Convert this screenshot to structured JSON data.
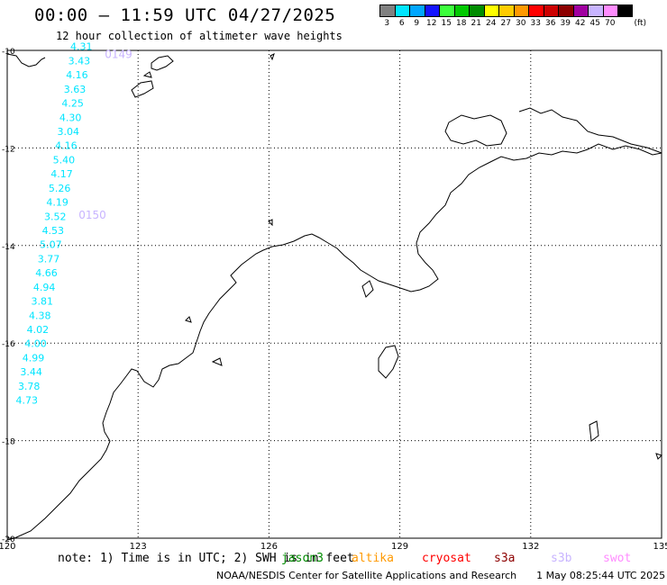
{
  "title": "00:00 — 11:59 UTC 04/27/2025",
  "subtitle": "12 hour collection of altimeter wave heights",
  "legend": {
    "unit": "(ft)",
    "bins": [
      {
        "label": "3",
        "color": "#808080"
      },
      {
        "label": "6",
        "color": "#00e5ff"
      },
      {
        "label": "9",
        "color": "#00a6ff"
      },
      {
        "label": "12",
        "color": "#1414ff"
      },
      {
        "label": "15",
        "color": "#3cff3c"
      },
      {
        "label": "18",
        "color": "#00c800"
      },
      {
        "label": "21",
        "color": "#008c00"
      },
      {
        "label": "24",
        "color": "#ffff00"
      },
      {
        "label": "27",
        "color": "#ffcc00"
      },
      {
        "label": "30",
        "color": "#ff9900"
      },
      {
        "label": "33",
        "color": "#ff0000"
      },
      {
        "label": "36",
        "color": "#cc0000"
      },
      {
        "label": "39",
        "color": "#8c0000"
      },
      {
        "label": "42",
        "color": "#a000a0"
      },
      {
        "label": "45",
        "color": "#c8b4ff"
      },
      {
        "label": "70",
        "color": "#ff8cff"
      },
      {
        "label": "",
        "color": "#000000"
      }
    ]
  },
  "map": {
    "lon_range": [
      120,
      135
    ],
    "lat_range": [
      -20,
      -10
    ],
    "lon_ticks": [
      "120",
      "123",
      "126",
      "129",
      "132",
      "135"
    ],
    "lat_ticks": [
      "-10",
      "-12",
      "-14",
      "-16",
      "-18",
      "-20"
    ],
    "grid": "dotted"
  },
  "track": {
    "color": "#00e5ff",
    "time_color": "#c8b4ff",
    "times": [
      {
        "label": "0149",
        "lat": -10.06
      },
      {
        "label": "0150",
        "lat": -13.36
      }
    ],
    "points": [
      {
        "lon": 121.7,
        "lat": -9.92,
        "swh": "4.31"
      },
      {
        "lon": 121.65,
        "lat": -10.21,
        "swh": "3.43"
      },
      {
        "lon": 121.6,
        "lat": -10.5,
        "swh": "4.16"
      },
      {
        "lon": 121.55,
        "lat": -10.79,
        "swh": "3.63"
      },
      {
        "lon": 121.5,
        "lat": -11.08,
        "swh": "4.25"
      },
      {
        "lon": 121.45,
        "lat": -11.37,
        "swh": "4.30"
      },
      {
        "lon": 121.4,
        "lat": -11.66,
        "swh": "3.04"
      },
      {
        "lon": 121.35,
        "lat": -11.95,
        "swh": "4.16"
      },
      {
        "lon": 121.3,
        "lat": -12.24,
        "swh": "5.40"
      },
      {
        "lon": 121.25,
        "lat": -12.53,
        "swh": "4.17"
      },
      {
        "lon": 121.2,
        "lat": -12.82,
        "swh": "5.26"
      },
      {
        "lon": 121.15,
        "lat": -13.11,
        "swh": "4.19"
      },
      {
        "lon": 121.1,
        "lat": -13.4,
        "swh": "3.52"
      },
      {
        "lon": 121.05,
        "lat": -13.69,
        "swh": "4.53"
      },
      {
        "lon": 121.0,
        "lat": -13.98,
        "swh": "5.07"
      },
      {
        "lon": 120.95,
        "lat": -14.27,
        "swh": "3.77"
      },
      {
        "lon": 120.9,
        "lat": -14.56,
        "swh": "4.66"
      },
      {
        "lon": 120.85,
        "lat": -14.85,
        "swh": "4.94"
      },
      {
        "lon": 120.8,
        "lat": -15.14,
        "swh": "3.81"
      },
      {
        "lon": 120.75,
        "lat": -15.43,
        "swh": "4.38"
      },
      {
        "lon": 120.7,
        "lat": -15.72,
        "swh": "4.02"
      },
      {
        "lon": 120.65,
        "lat": -16.01,
        "swh": "4.00"
      },
      {
        "lon": 120.6,
        "lat": -16.3,
        "swh": "4.99"
      },
      {
        "lon": 120.55,
        "lat": -16.59,
        "swh": "3.44"
      },
      {
        "lon": 120.5,
        "lat": -16.88,
        "swh": "3.78"
      },
      {
        "lon": 120.45,
        "lat": -17.17,
        "swh": "4.73"
      }
    ]
  },
  "footer": {
    "note": "note: 1) Time is in UTC; 2) SWH is in feet",
    "satellites": [
      {
        "name": "jason3",
        "color": "#008c00"
      },
      {
        "name": "altika",
        "color": "#ff9900"
      },
      {
        "name": "cryosat",
        "color": "#ff0000"
      },
      {
        "name": "s3a",
        "color": "#8c0000"
      },
      {
        "name": "s3b",
        "color": "#c8b4ff"
      },
      {
        "name": "swot",
        "color": "#ff8cff"
      }
    ],
    "credit": "NOAA/NESDIS Center for Satellite Applications and Research",
    "timestamp": "1 May 08:25:44 UTC 2025"
  }
}
